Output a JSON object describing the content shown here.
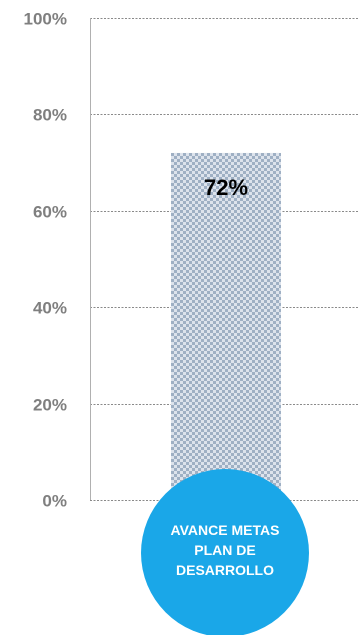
{
  "chart_data": {
    "type": "bar",
    "categories": [
      "AVANCE METAS PLAN DE DESARROLLO"
    ],
    "category_label_lines": [
      "AVANCE METAS",
      "PLAN DE",
      "DESARROLLO"
    ],
    "values": [
      72
    ],
    "data_labels": [
      "72%"
    ],
    "ylim": [
      0,
      100
    ],
    "y_ticks": [
      0,
      20,
      40,
      60,
      80,
      100
    ],
    "y_tick_labels": [
      "0%",
      "20%",
      "40%",
      "60%",
      "80%",
      "100%"
    ],
    "grid": true,
    "legend": "none",
    "title": "",
    "xlabel": "",
    "ylabel": ""
  },
  "colors": {
    "bar_pattern_primary": "#9fb0c4",
    "bar_pattern_background": "#dde3ec",
    "category_badge": "#1aa7e8",
    "grid": "#8a8a8a",
    "tick_text": "#7f7f7f"
  }
}
